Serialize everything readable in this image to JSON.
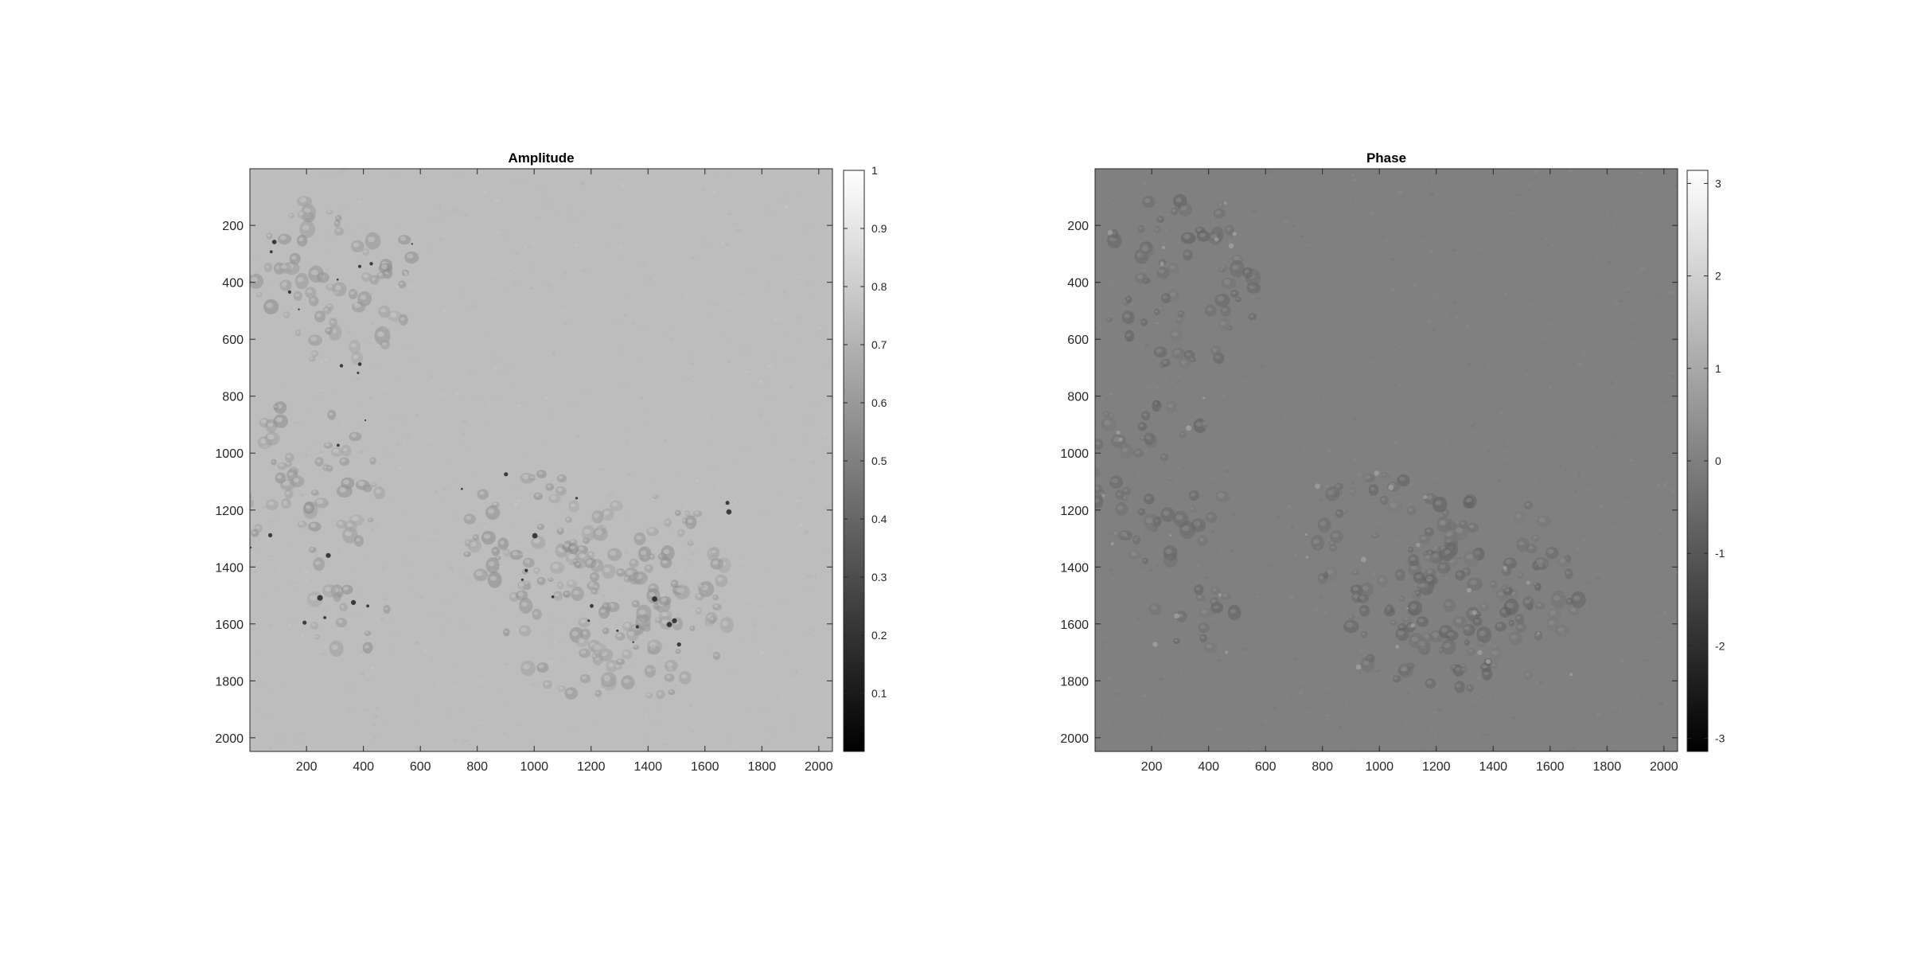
{
  "figure": {
    "background": "#ffffff"
  },
  "chart_data": [
    {
      "type": "heatmap",
      "title": "Amplitude",
      "xlabel": "",
      "ylabel": "",
      "xlim": [
        1,
        2048
      ],
      "ylim": [
        1,
        2048
      ],
      "y_reversed": true,
      "x_ticks": [
        200,
        400,
        600,
        800,
        1000,
        1200,
        1400,
        1600,
        1800,
        2000
      ],
      "x_tick_labels": [
        "200",
        "400",
        "600",
        "800",
        "1000",
        "1200",
        "1400",
        "1600",
        "1800",
        "2000"
      ],
      "y_ticks": [
        200,
        400,
        600,
        800,
        1000,
        1200,
        1400,
        1600,
        1800,
        2000
      ],
      "y_tick_labels": [
        "200",
        "400",
        "600",
        "800",
        "1000",
        "1200",
        "1400",
        "1600",
        "1800",
        "2000"
      ],
      "colormap": "gray",
      "colorbar": {
        "range": [
          0,
          1
        ],
        "ticks": [
          0.1,
          0.2,
          0.3,
          0.4,
          0.5,
          0.6,
          0.7,
          0.8,
          0.9,
          1
        ],
        "tick_labels": [
          "0.1",
          "0.2",
          "0.3",
          "0.4",
          "0.5",
          "0.6",
          "0.7",
          "0.8",
          "0.9",
          "1"
        ]
      },
      "image_summary": {
        "background_level": 0.74,
        "cell_level": 0.6,
        "speckle_level": 0.1,
        "cell_clusters": [
          {
            "x": 300,
            "y": 400,
            "rx": 280,
            "ry": 320
          },
          {
            "x": 200,
            "y": 1100,
            "rx": 260,
            "ry": 300
          },
          {
            "x": 1000,
            "y": 1300,
            "rx": 260,
            "ry": 240
          },
          {
            "x": 1400,
            "y": 1500,
            "rx": 300,
            "ry": 360
          },
          {
            "x": 1200,
            "y": 1600,
            "rx": 300,
            "ry": 260
          },
          {
            "x": 350,
            "y": 1580,
            "rx": 160,
            "ry": 120
          }
        ]
      },
      "grid": false,
      "legend": "none"
    },
    {
      "type": "heatmap",
      "title": "Phase",
      "xlabel": "",
      "ylabel": "",
      "xlim": [
        1,
        2048
      ],
      "ylim": [
        1,
        2048
      ],
      "y_reversed": true,
      "x_ticks": [
        200,
        400,
        600,
        800,
        1000,
        1200,
        1400,
        1600,
        1800,
        2000
      ],
      "x_tick_labels": [
        "200",
        "400",
        "600",
        "800",
        "1000",
        "1200",
        "1400",
        "1600",
        "1800",
        "2000"
      ],
      "y_ticks": [
        200,
        400,
        600,
        800,
        1000,
        1200,
        1400,
        1600,
        1800,
        2000
      ],
      "y_tick_labels": [
        "200",
        "400",
        "600",
        "800",
        "1000",
        "1200",
        "1400",
        "1600",
        "1800",
        "2000"
      ],
      "colormap": "gray",
      "colorbar": {
        "range": [
          -3.1416,
          3.1416
        ],
        "ticks": [
          -3,
          -2,
          -1,
          0,
          1,
          2,
          3
        ],
        "tick_labels": [
          "-3",
          "-2",
          "-1",
          "0",
          "1",
          "2",
          "3"
        ]
      },
      "image_summary": {
        "background_level": 0.0,
        "cell_level": -0.5,
        "speckle_level": 0.8,
        "cell_clusters": [
          {
            "x": 300,
            "y": 400,
            "rx": 280,
            "ry": 320
          },
          {
            "x": 200,
            "y": 1100,
            "rx": 260,
            "ry": 300
          },
          {
            "x": 1000,
            "y": 1300,
            "rx": 260,
            "ry": 240
          },
          {
            "x": 1400,
            "y": 1500,
            "rx": 300,
            "ry": 360
          },
          {
            "x": 1200,
            "y": 1600,
            "rx": 300,
            "ry": 260
          },
          {
            "x": 350,
            "y": 1580,
            "rx": 160,
            "ry": 120
          }
        ]
      },
      "grid": false,
      "legend": "none"
    }
  ]
}
